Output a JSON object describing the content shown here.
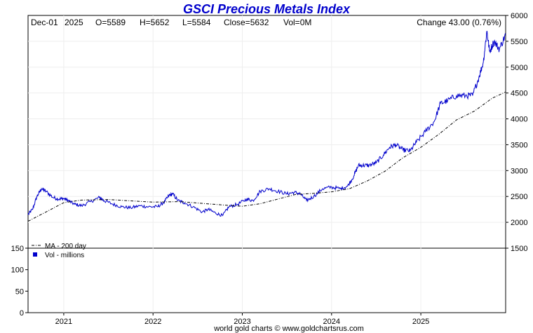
{
  "chart_data": {
    "type": "line",
    "title": "GSCI Precious Metals Index",
    "quote": {
      "date": "Dec-01",
      "year": "2025",
      "open": "O=5589",
      "high": "H=5652",
      "low": "L=5584",
      "close": "Close=5632",
      "volume": "Vol=0M",
      "change": "Change 43.00 (0.76%)"
    },
    "price_axis": {
      "ylim": [
        1500,
        6000
      ],
      "ticks": [
        "1500",
        "2000",
        "2500",
        "3000",
        "3500",
        "4000",
        "4500",
        "5000",
        "5500",
        "6000"
      ]
    },
    "volume_axis": {
      "ylim": [
        0,
        150
      ],
      "ticks": [
        "0",
        "50",
        "100",
        "150"
      ]
    },
    "x_range": [
      2020.6,
      2025.95
    ],
    "year_labels": [
      {
        "label": "2021",
        "t": 2021.0
      },
      {
        "label": "2022",
        "t": 2022.0
      },
      {
        "label": "2023",
        "t": 2023.0
      },
      {
        "label": "2024",
        "t": 2024.0
      },
      {
        "label": "2025",
        "t": 2025.0
      }
    ],
    "series": [
      {
        "name": "GSCI Precious Metals Index",
        "color": "#0000cc",
        "points": [
          [
            2020.6,
            2150
          ],
          [
            2020.65,
            2250
          ],
          [
            2020.7,
            2500
          ],
          [
            2020.75,
            2650
          ],
          [
            2020.8,
            2600
          ],
          [
            2020.88,
            2480
          ],
          [
            2020.95,
            2450
          ],
          [
            2021.0,
            2460
          ],
          [
            2021.05,
            2420
          ],
          [
            2021.12,
            2350
          ],
          [
            2021.2,
            2320
          ],
          [
            2021.3,
            2400
          ],
          [
            2021.4,
            2480
          ],
          [
            2021.45,
            2420
          ],
          [
            2021.55,
            2350
          ],
          [
            2021.65,
            2300
          ],
          [
            2021.75,
            2280
          ],
          [
            2021.85,
            2320
          ],
          [
            2021.95,
            2300
          ],
          [
            2022.05,
            2300
          ],
          [
            2022.12,
            2380
          ],
          [
            2022.18,
            2520
          ],
          [
            2022.22,
            2550
          ],
          [
            2022.28,
            2420
          ],
          [
            2022.35,
            2380
          ],
          [
            2022.45,
            2300
          ],
          [
            2022.55,
            2200
          ],
          [
            2022.62,
            2250
          ],
          [
            2022.7,
            2180
          ],
          [
            2022.78,
            2130
          ],
          [
            2022.85,
            2300
          ],
          [
            2022.95,
            2350
          ],
          [
            2023.05,
            2450
          ],
          [
            2023.12,
            2420
          ],
          [
            2023.2,
            2600
          ],
          [
            2023.3,
            2650
          ],
          [
            2023.4,
            2600
          ],
          [
            2023.5,
            2550
          ],
          [
            2023.58,
            2580
          ],
          [
            2023.65,
            2550
          ],
          [
            2023.72,
            2420
          ],
          [
            2023.8,
            2500
          ],
          [
            2023.9,
            2650
          ],
          [
            2024.0,
            2680
          ],
          [
            2024.1,
            2650
          ],
          [
            2024.18,
            2700
          ],
          [
            2024.25,
            2900
          ],
          [
            2024.3,
            3100
          ],
          [
            2024.35,
            3100
          ],
          [
            2024.42,
            3100
          ],
          [
            2024.5,
            3150
          ],
          [
            2024.58,
            3300
          ],
          [
            2024.65,
            3450
          ],
          [
            2024.72,
            3500
          ],
          [
            2024.8,
            3400
          ],
          [
            2024.88,
            3380
          ],
          [
            2024.95,
            3550
          ],
          [
            2025.05,
            3750
          ],
          [
            2025.15,
            3950
          ],
          [
            2025.22,
            4300
          ],
          [
            2025.3,
            4350
          ],
          [
            2025.4,
            4450
          ],
          [
            2025.5,
            4450
          ],
          [
            2025.58,
            4450
          ],
          [
            2025.65,
            4800
          ],
          [
            2025.7,
            5100
          ],
          [
            2025.74,
            5700
          ],
          [
            2025.77,
            5300
          ],
          [
            2025.82,
            5500
          ],
          [
            2025.88,
            5350
          ],
          [
            2025.95,
            5632
          ]
        ]
      },
      {
        "name": "MA - 200 day",
        "color": "#000000",
        "points": [
          [
            2020.6,
            2020
          ],
          [
            2020.8,
            2200
          ],
          [
            2021.0,
            2380
          ],
          [
            2021.2,
            2430
          ],
          [
            2021.5,
            2440
          ],
          [
            2021.8,
            2410
          ],
          [
            2022.0,
            2390
          ],
          [
            2022.3,
            2400
          ],
          [
            2022.6,
            2360
          ],
          [
            2022.9,
            2320
          ],
          [
            2023.0,
            2310
          ],
          [
            2023.2,
            2360
          ],
          [
            2023.4,
            2450
          ],
          [
            2023.6,
            2540
          ],
          [
            2023.8,
            2560
          ],
          [
            2024.0,
            2590
          ],
          [
            2024.2,
            2650
          ],
          [
            2024.4,
            2800
          ],
          [
            2024.6,
            2990
          ],
          [
            2024.8,
            3250
          ],
          [
            2025.0,
            3450
          ],
          [
            2025.2,
            3700
          ],
          [
            2025.4,
            3980
          ],
          [
            2025.6,
            4150
          ],
          [
            2025.8,
            4400
          ],
          [
            2025.95,
            4520
          ]
        ]
      },
      {
        "name": "Vol - millions",
        "color": "#0000cc",
        "points": []
      }
    ]
  },
  "legend": {
    "ma_label": "MA - 200 day",
    "vol_label": "Vol - millions"
  },
  "footer": "world gold charts © www.goldchartsrus.com"
}
